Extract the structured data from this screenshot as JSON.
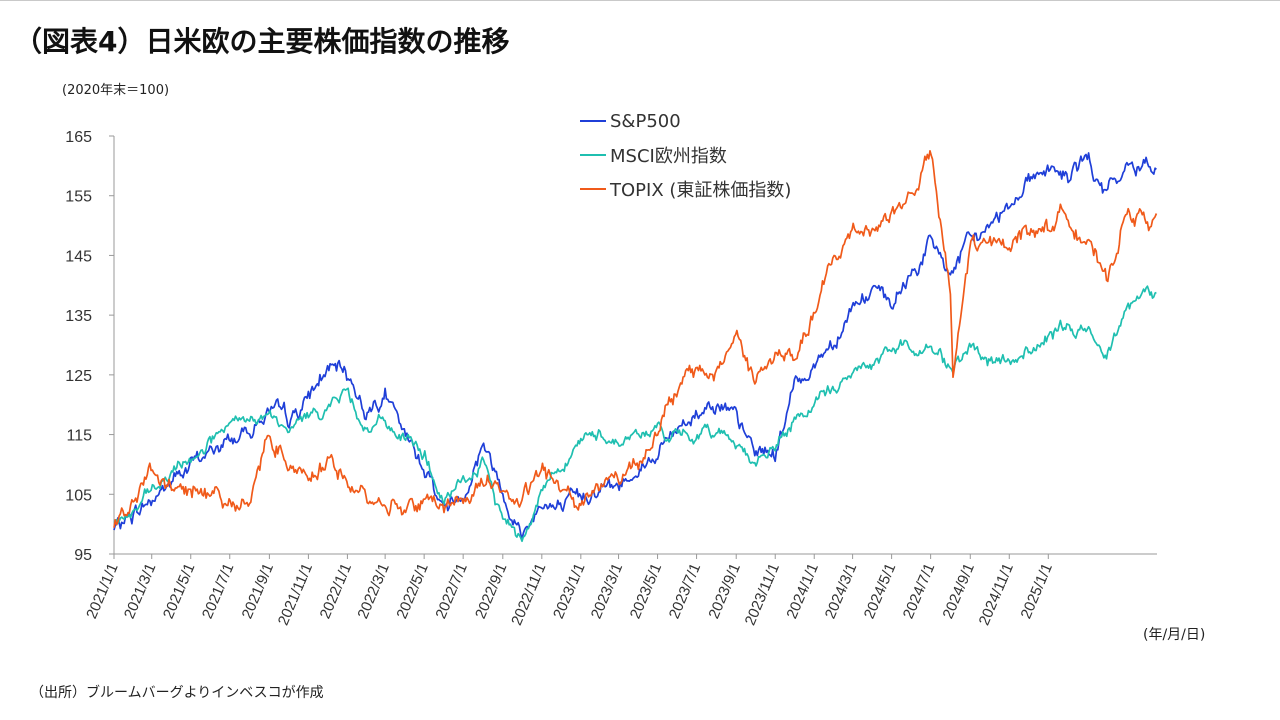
{
  "title": "（図表4）日米欧の主要株価指数の推移",
  "unit_label": "(2020年末＝100)",
  "x_unit_label": "(年/月/日)",
  "source": "（出所）ブルームバーグよりインベスコが作成",
  "colors": {
    "sp500": "#1f3fd8",
    "msci": "#1fbfb0",
    "topix": "#f05a1a",
    "axis": "#999999"
  },
  "chart_data": {
    "type": "line",
    "title": "（図表4）日米欧の主要株価指数の推移",
    "ylabel": "(2020年末＝100)",
    "xlabel": "(年/月/日)",
    "ylim": [
      95,
      165
    ],
    "yticks": [
      95,
      105,
      115,
      125,
      135,
      145,
      155,
      165
    ],
    "xlim": [
      "2021-01-01",
      "2025-06-20"
    ],
    "x_tick_labels": [
      "2021/1/1",
      "2021/3/1",
      "2021/5/1",
      "2021/7/1",
      "2021/9/1",
      "2021/11/1",
      "2022/1/1",
      "2022/3/1",
      "2022/5/1",
      "2022/7/1",
      "2022/9/1",
      "2022/11/1",
      "2023/1/1",
      "2023/3/1",
      "2023/5/1",
      "2023/7/1",
      "2023/9/1",
      "2023/11/1",
      "2024/1/1",
      "2024/3/1",
      "2024/5/1",
      "2024/7/1",
      "2024/9/1",
      "2024/11/1",
      "2025/1/1"
    ],
    "grid": false,
    "legend_position": "top-center",
    "series": [
      {
        "name": "S&P500",
        "color": "#1f3fd8",
        "x": [
          "2021-01-01",
          "2021-02-01",
          "2021-03-01",
          "2021-04-01",
          "2021-05-01",
          "2021-06-01",
          "2021-07-01",
          "2021-08-01",
          "2021-09-01",
          "2021-10-01",
          "2021-11-01",
          "2021-12-01",
          "2022-01-01",
          "2022-02-01",
          "2022-03-01",
          "2022-04-01",
          "2022-05-01",
          "2022-06-01",
          "2022-07-01",
          "2022-08-01",
          "2022-09-01",
          "2022-10-01",
          "2022-11-01",
          "2022-12-01",
          "2023-01-01",
          "2023-02-01",
          "2023-03-01",
          "2023-04-01",
          "2023-05-01",
          "2023-06-01",
          "2023-07-01",
          "2023-08-01",
          "2023-09-01",
          "2023-10-01",
          "2023-11-01",
          "2023-12-01",
          "2024-01-01",
          "2024-02-01",
          "2024-03-01",
          "2024-04-01",
          "2024-05-01",
          "2024-06-01",
          "2024-07-01",
          "2024-08-01",
          "2024-09-01",
          "2024-10-01",
          "2024-11-01",
          "2024-12-01",
          "2025-01-01",
          "2025-02-01",
          "2025-03-01",
          "2025-04-01",
          "2025-05-01",
          "2025-06-20"
        ],
        "y": [
          99,
          102,
          104,
          107,
          110,
          112,
          114,
          116,
          119,
          117,
          121,
          126,
          125,
          119,
          122,
          114,
          110,
          103,
          105,
          114,
          106,
          98,
          104,
          102,
          104,
          107,
          106,
          110,
          112,
          116,
          119,
          121,
          117,
          112,
          112,
          123,
          127,
          131,
          137,
          139,
          136,
          142,
          147,
          142,
          147,
          150,
          154,
          158,
          160,
          158,
          161,
          155,
          159,
          161
        ]
      },
      {
        "name": "MSCI欧州指数",
        "color": "#1fbfb0",
        "x": [
          "2021-01-01",
          "2021-02-01",
          "2021-03-01",
          "2021-04-01",
          "2021-05-01",
          "2021-06-01",
          "2021-07-01",
          "2021-08-01",
          "2021-09-01",
          "2021-10-01",
          "2021-11-01",
          "2021-12-01",
          "2022-01-01",
          "2022-02-01",
          "2022-03-01",
          "2022-04-01",
          "2022-05-01",
          "2022-06-01",
          "2022-07-01",
          "2022-08-01",
          "2022-09-01",
          "2022-10-01",
          "2022-11-01",
          "2022-12-01",
          "2023-01-01",
          "2023-02-01",
          "2023-03-01",
          "2023-04-01",
          "2023-05-01",
          "2023-06-01",
          "2023-07-01",
          "2023-08-01",
          "2023-09-01",
          "2023-10-01",
          "2023-11-01",
          "2023-12-01",
          "2024-01-01",
          "2024-02-01",
          "2024-03-01",
          "2024-04-01",
          "2024-05-01",
          "2024-06-01",
          "2024-07-01",
          "2024-08-01",
          "2024-09-01",
          "2024-10-01",
          "2024-11-01",
          "2024-12-01",
          "2025-01-01",
          "2025-02-01",
          "2025-03-01",
          "2025-04-01",
          "2025-05-01",
          "2025-06-20"
        ],
        "y": [
          100,
          102,
          105,
          108,
          111,
          114,
          116,
          117,
          118,
          115,
          118,
          120,
          122,
          116,
          117,
          114,
          112,
          103,
          107,
          110,
          101,
          98,
          106,
          110,
          114,
          115,
          114,
          115,
          116,
          114,
          115,
          116,
          114,
          110,
          113,
          117,
          120,
          123,
          125,
          127,
          129,
          130,
          129,
          127,
          129,
          127,
          127,
          129,
          131,
          133,
          132,
          129,
          137,
          139
        ]
      },
      {
        "name": "TOPIX (東証株価指数)",
        "color": "#f05a1a",
        "x": [
          "2021-01-01",
          "2021-02-01",
          "2021-03-01",
          "2021-04-01",
          "2021-05-01",
          "2021-06-01",
          "2021-07-01",
          "2021-08-01",
          "2021-09-01",
          "2021-10-01",
          "2021-11-01",
          "2021-12-01",
          "2022-01-01",
          "2022-02-01",
          "2022-03-01",
          "2022-04-01",
          "2022-05-01",
          "2022-06-01",
          "2022-07-01",
          "2022-08-01",
          "2022-09-01",
          "2022-10-01",
          "2022-11-01",
          "2022-12-01",
          "2023-01-01",
          "2023-02-01",
          "2023-03-01",
          "2023-04-01",
          "2023-05-01",
          "2023-06-01",
          "2023-07-01",
          "2023-08-01",
          "2023-09-01",
          "2023-10-01",
          "2023-11-01",
          "2023-12-01",
          "2024-01-01",
          "2024-02-01",
          "2024-03-01",
          "2024-04-01",
          "2024-05-01",
          "2024-06-01",
          "2024-07-01",
          "2024-08-01",
          "2024-08-05",
          "2024-09-01",
          "2024-10-01",
          "2024-11-01",
          "2024-12-01",
          "2025-01-01",
          "2025-02-01",
          "2025-03-01",
          "2025-04-01",
          "2025-05-01",
          "2025-06-20"
        ],
        "y": [
          100,
          104,
          108,
          106,
          105,
          106,
          104,
          103,
          116,
          110,
          109,
          111,
          107,
          104,
          104,
          103,
          104,
          103,
          104,
          108,
          106,
          103,
          109,
          106,
          104,
          107,
          108,
          111,
          116,
          122,
          126,
          125,
          132,
          124,
          128,
          128,
          135,
          144,
          149,
          150,
          152,
          155,
          162,
          138,
          124,
          147,
          146,
          148,
          149,
          150,
          152,
          148,
          140,
          152,
          151
        ]
      }
    ]
  }
}
